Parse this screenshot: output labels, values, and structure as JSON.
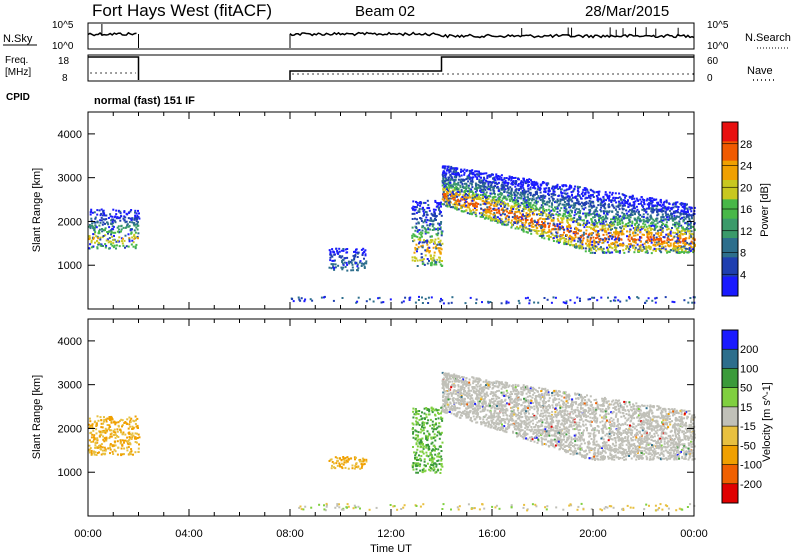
{
  "header": {
    "station": "Fort Hays West (fitACF)",
    "beam": "Beam 02",
    "date": "28/Mar/2015"
  },
  "panels": {
    "noise": {
      "left_label": "N.Sky",
      "right_label": "N.Search",
      "left_ticks": [
        "10^5",
        "10^0"
      ],
      "right_ticks": [
        "10^5",
        "10^0"
      ]
    },
    "freq": {
      "left_label_1": "Freq.",
      "left_label_2": "[MHz]",
      "right_label": "Nave",
      "left_ticks": [
        "18",
        "8"
      ],
      "right_ticks": [
        "60",
        "0"
      ]
    },
    "cpid": {
      "label": "CPID",
      "text": "normal (fast) 151 IF"
    }
  },
  "colors": {
    "power": [
      "#1a1aff",
      "#1f3fb0",
      "#2d6e8c",
      "#3a9a6a",
      "#48b848",
      "#c8c820",
      "#f0a000",
      "#f05a00",
      "#e81010"
    ],
    "velocity": [
      "#e00000",
      "#f06000",
      "#f0a000",
      "#e8c040",
      "#c0c0b8",
      "#80d040",
      "#3a9a3a",
      "#2d6e8c",
      "#1a1aff"
    ]
  },
  "chart_data": [
    {
      "type": "heatmap",
      "name": "power-panel",
      "xlabel": "",
      "ylabel": "Slant Range [km]",
      "y_ticks": [
        "1000",
        "2000",
        "3000",
        "4000"
      ],
      "ylim": [
        0,
        4500
      ],
      "colorbar": {
        "label": "Power [dB]",
        "ticks": [
          "4",
          "8",
          "12",
          "16",
          "20",
          "24",
          "28"
        ],
        "range": [
          0,
          32
        ]
      },
      "echo_regions": [
        {
          "t0": 0.0,
          "t1": 2.0,
          "r0": 1400,
          "r1": 2300,
          "level": 0.45
        },
        {
          "t0": 9.5,
          "t1": 11.0,
          "r0": 900,
          "r1": 1400,
          "level": 0.2
        },
        {
          "t0": 12.8,
          "t1": 14.0,
          "r0": 1000,
          "r1": 2500,
          "level": 0.5
        },
        {
          "t0": 14.0,
          "t1": 24.0,
          "r0": 1300,
          "r1": 3300,
          "level": 0.55
        }
      ]
    },
    {
      "type": "heatmap",
      "name": "velocity-panel",
      "xlabel": "Time UT",
      "ylabel": "Slant Range [km]",
      "x_ticks": [
        "00:00",
        "04:00",
        "08:00",
        "12:00",
        "16:00",
        "20:00",
        "00:00"
      ],
      "y_ticks": [
        "1000",
        "2000",
        "3000",
        "4000"
      ],
      "ylim": [
        0,
        4500
      ],
      "colorbar": {
        "label": "Velocity [m s^-1]",
        "ticks": [
          "200",
          "100",
          "50",
          "15",
          "-15",
          "-50",
          "-100",
          "-200"
        ]
      },
      "echo_regions": [
        {
          "t0": 0.0,
          "t1": 2.0,
          "r0": 1400,
          "r1": 2300,
          "velocity": -20
        },
        {
          "t0": 9.5,
          "t1": 11.0,
          "r0": 1100,
          "r1": 1400,
          "velocity": -40
        },
        {
          "t0": 12.8,
          "t1": 14.0,
          "r0": 1000,
          "r1": 2500,
          "velocity": 30
        },
        {
          "t0": 14.0,
          "t1": 24.0,
          "r0": 1300,
          "r1": 3300,
          "velocity": 0
        }
      ]
    }
  ]
}
